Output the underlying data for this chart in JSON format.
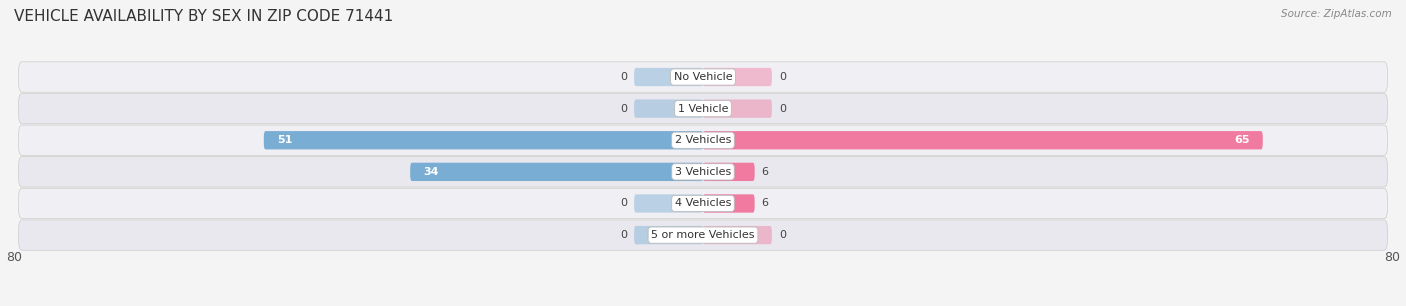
{
  "title": "VEHICLE AVAILABILITY BY SEX IN ZIP CODE 71441",
  "source": "Source: ZipAtlas.com",
  "categories": [
    "No Vehicle",
    "1 Vehicle",
    "2 Vehicles",
    "3 Vehicles",
    "4 Vehicles",
    "5 or more Vehicles"
  ],
  "male_values": [
    0,
    0,
    51,
    34,
    0,
    0
  ],
  "female_values": [
    0,
    0,
    65,
    6,
    6,
    0
  ],
  "male_color": "#7aadd4",
  "female_color": "#f07aa0",
  "row_bg_color_light": "#f0f0f4",
  "row_bg_color_dark": "#e8e8ee",
  "xlim": 80,
  "label_fontsize": 9,
  "title_fontsize": 11,
  "bar_height": 0.58,
  "figsize": [
    14.06,
    3.06
  ],
  "dpi": 100
}
